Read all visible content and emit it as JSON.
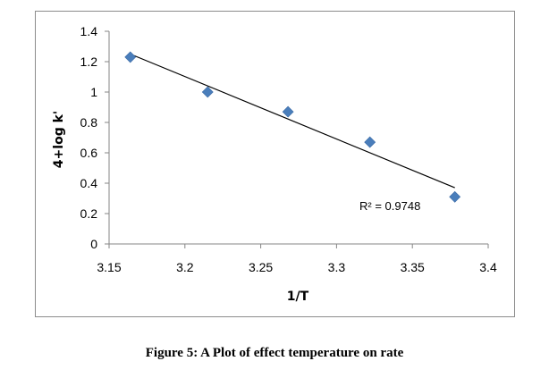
{
  "caption": "Figure 5: A Plot of effect temperature on rate",
  "chart_data": {
    "type": "scatter",
    "xlabel": "1/T",
    "ylabel": "4+log k'",
    "xlim": [
      3.15,
      3.4
    ],
    "ylim": [
      0,
      1.4
    ],
    "x_ticks": [
      3.15,
      3.2,
      3.25,
      3.3,
      3.35,
      3.4
    ],
    "x_tick_labels": [
      "3.15",
      "3.2",
      "3.25",
      "3.3",
      "3.35",
      "3.4"
    ],
    "y_ticks": [
      0,
      0.2,
      0.4,
      0.6,
      0.8,
      1,
      1.2,
      1.4
    ],
    "y_tick_labels": [
      "0",
      "0.2",
      "0.4",
      "0.6",
      "0.8",
      "1",
      "1.2",
      "1.4"
    ],
    "grid": false,
    "legend": "none",
    "series": [
      {
        "x": [
          3.164,
          3.215,
          3.268,
          3.322,
          3.378
        ],
        "y": [
          1.23,
          1.0,
          0.87,
          0.67,
          0.31
        ],
        "marker": "diamond",
        "color": "#4a7ebb"
      }
    ],
    "trendline": {
      "type": "linear",
      "x": [
        3.164,
        3.378
      ],
      "y": [
        1.25,
        0.37
      ],
      "color": "#000000"
    },
    "annotations": [
      {
        "text": "R² = 0.9748"
      }
    ]
  }
}
